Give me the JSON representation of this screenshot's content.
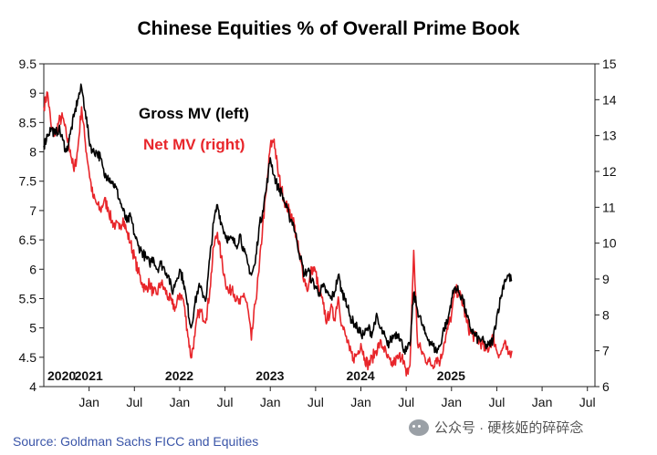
{
  "chart_data": {
    "type": "line",
    "title": "Chinese Equities % of Overall Prime Book",
    "legend": [
      {
        "name": "Gross MV (left)",
        "color": "#000000"
      },
      {
        "name": "Net MV (right)",
        "color": "#e8262b"
      }
    ],
    "left_axis": {
      "min": 4,
      "max": 9.5,
      "ticks": [
        "9.5",
        "9",
        "8.5",
        "8",
        "7.5",
        "7",
        "6.5",
        "6",
        "5.5",
        "5",
        "4.5",
        "4"
      ]
    },
    "right_axis": {
      "min": 6,
      "max": 15,
      "ticks": [
        "15",
        "14",
        "13",
        "12",
        "11",
        "10",
        "9",
        "8",
        "7",
        "6"
      ]
    },
    "x_ticks": [
      "Jan",
      "Jul",
      "Jan",
      "Jul",
      "Jan",
      "Jul",
      "Jan",
      "Jul",
      "Jan",
      "Jul",
      "Jan",
      "Jul"
    ],
    "x_tick_months": [
      6,
      12,
      18,
      24,
      30,
      36,
      42,
      48,
      54,
      60,
      66,
      72
    ],
    "years": [
      {
        "label": "2020",
        "month": 0
      },
      {
        "label": "2021",
        "month": 6
      },
      {
        "label": "2022",
        "month": 18
      },
      {
        "label": "2023",
        "month": 30
      },
      {
        "label": "2024",
        "month": 42
      },
      {
        "label": "2025",
        "month": 54
      }
    ],
    "x_range_months": [
      0,
      73
    ],
    "series": [
      {
        "name": "Gross MV (left)",
        "axis": "left",
        "color": "#000000",
        "points": [
          [
            0,
            8.1
          ],
          [
            0.5,
            8.3
          ],
          [
            1,
            8.4
          ],
          [
            1.5,
            8.3
          ],
          [
            2,
            8.4
          ],
          [
            2.5,
            8.2
          ],
          [
            3,
            8.0
          ],
          [
            3.5,
            8.3
          ],
          [
            4,
            8.6
          ],
          [
            4.5,
            8.9
          ],
          [
            5,
            9.1
          ],
          [
            5.5,
            8.7
          ],
          [
            6,
            8.2
          ],
          [
            6.5,
            8.0
          ],
          [
            7,
            8.0
          ],
          [
            7.5,
            7.9
          ],
          [
            8,
            7.6
          ],
          [
            8.5,
            7.6
          ],
          [
            9,
            7.5
          ],
          [
            9.5,
            7.4
          ],
          [
            10,
            7.2
          ],
          [
            10.5,
            7.0
          ],
          [
            11,
            6.8
          ],
          [
            11.5,
            6.9
          ],
          [
            12,
            6.6
          ],
          [
            12.5,
            6.4
          ],
          [
            13,
            6.3
          ],
          [
            13.5,
            6.2
          ],
          [
            14,
            6.1
          ],
          [
            14.5,
            6.2
          ],
          [
            15,
            6.0
          ],
          [
            15.5,
            6.1
          ],
          [
            16,
            6.0
          ],
          [
            16.5,
            5.9
          ],
          [
            17,
            5.6
          ],
          [
            17.5,
            5.8
          ],
          [
            18,
            6.0
          ],
          [
            18.5,
            5.8
          ],
          [
            19,
            5.4
          ],
          [
            19.5,
            5.0
          ],
          [
            20,
            5.4
          ],
          [
            20.5,
            5.7
          ],
          [
            21,
            5.6
          ],
          [
            21.5,
            5.5
          ],
          [
            22,
            6.2
          ],
          [
            22.5,
            6.8
          ],
          [
            23,
            7.1
          ],
          [
            23.5,
            6.8
          ],
          [
            24,
            6.6
          ],
          [
            24.5,
            6.5
          ],
          [
            25,
            6.5
          ],
          [
            25.5,
            6.4
          ],
          [
            26,
            6.6
          ],
          [
            26.5,
            6.3
          ],
          [
            27,
            6.1
          ],
          [
            27.5,
            5.9
          ],
          [
            28,
            6.1
          ],
          [
            28.5,
            6.7
          ],
          [
            29,
            7.0
          ],
          [
            29.5,
            7.4
          ],
          [
            30,
            7.9
          ],
          [
            30.5,
            7.6
          ],
          [
            31,
            7.4
          ],
          [
            31.5,
            7.3
          ],
          [
            32,
            7.1
          ],
          [
            32.5,
            6.9
          ],
          [
            33,
            6.8
          ],
          [
            33.5,
            6.5
          ],
          [
            34,
            6.2
          ],
          [
            34.5,
            5.9
          ],
          [
            35,
            6.0
          ],
          [
            35.5,
            5.8
          ],
          [
            36,
            5.7
          ],
          [
            36.5,
            5.6
          ],
          [
            37,
            5.7
          ],
          [
            37.5,
            5.6
          ],
          [
            38,
            5.5
          ],
          [
            38.5,
            5.6
          ],
          [
            39,
            5.9
          ],
          [
            39.5,
            5.6
          ],
          [
            40,
            5.5
          ],
          [
            40.5,
            5.2
          ],
          [
            41,
            5.1
          ],
          [
            41.5,
            5.0
          ],
          [
            42,
            4.9
          ],
          [
            42.5,
            4.9
          ],
          [
            43,
            5.0
          ],
          [
            43.5,
            4.9
          ],
          [
            44,
            5.2
          ],
          [
            44.5,
            5.0
          ],
          [
            45,
            4.9
          ],
          [
            45.5,
            4.7
          ],
          [
            46,
            4.8
          ],
          [
            46.5,
            4.9
          ],
          [
            47,
            4.9
          ],
          [
            47.5,
            4.7
          ],
          [
            48,
            4.6
          ],
          [
            48.5,
            4.7
          ],
          [
            49,
            5.6
          ],
          [
            49.5,
            5.3
          ],
          [
            50,
            5.1
          ],
          [
            50.5,
            4.9
          ],
          [
            51,
            4.8
          ],
          [
            51.5,
            4.7
          ],
          [
            52,
            4.6
          ],
          [
            52.5,
            4.7
          ],
          [
            53,
            5.0
          ],
          [
            53.5,
            5.1
          ],
          [
            54,
            5.5
          ],
          [
            54.5,
            5.7
          ],
          [
            55,
            5.6
          ],
          [
            55.5,
            5.5
          ],
          [
            56,
            5.2
          ],
          [
            56.5,
            5.0
          ],
          [
            57,
            4.9
          ],
          [
            57.5,
            4.8
          ],
          [
            58,
            4.8
          ],
          [
            58.5,
            4.7
          ],
          [
            59,
            4.7
          ],
          [
            59.5,
            4.8
          ],
          [
            60,
            5.2
          ],
          [
            60.5,
            5.5
          ],
          [
            61,
            5.8
          ],
          [
            61.5,
            5.9
          ],
          [
            62,
            5.8
          ]
        ]
      },
      {
        "name": "Net MV (right)",
        "axis": "right",
        "color": "#e8262b",
        "points": [
          [
            0,
            13.8
          ],
          [
            0.5,
            14.2
          ],
          [
            1,
            13.2
          ],
          [
            1.5,
            13.0
          ],
          [
            2,
            13.4
          ],
          [
            2.5,
            13.5
          ],
          [
            3,
            13.0
          ],
          [
            3.5,
            12.6
          ],
          [
            4,
            12.0
          ],
          [
            4.5,
            12.6
          ],
          [
            5,
            13.8
          ],
          [
            5.5,
            12.8
          ],
          [
            6,
            12.0
          ],
          [
            6.5,
            11.3
          ],
          [
            7,
            11.1
          ],
          [
            7.5,
            10.9
          ],
          [
            8,
            11.2
          ],
          [
            8.5,
            11.0
          ],
          [
            9,
            10.6
          ],
          [
            9.5,
            10.5
          ],
          [
            10,
            10.4
          ],
          [
            10.5,
            10.7
          ],
          [
            11,
            10.3
          ],
          [
            11.5,
            10.0
          ],
          [
            12,
            9.6
          ],
          [
            12.5,
            9.2
          ],
          [
            13,
            8.9
          ],
          [
            13.5,
            8.7
          ],
          [
            14,
            8.9
          ],
          [
            14.5,
            8.6
          ],
          [
            15,
            8.6
          ],
          [
            15.5,
            8.9
          ],
          [
            16,
            8.7
          ],
          [
            16.5,
            8.5
          ],
          [
            17,
            8.3
          ],
          [
            17.5,
            8.2
          ],
          [
            18,
            8.6
          ],
          [
            18.5,
            8.4
          ],
          [
            19,
            7.6
          ],
          [
            19.5,
            6.8
          ],
          [
            20,
            7.4
          ],
          [
            20.5,
            8.1
          ],
          [
            21,
            8.0
          ],
          [
            21.5,
            7.9
          ],
          [
            22,
            8.7
          ],
          [
            22.5,
            9.9
          ],
          [
            23,
            10.3
          ],
          [
            23.5,
            9.6
          ],
          [
            24,
            9.0
          ],
          [
            24.5,
            8.6
          ],
          [
            25,
            8.8
          ],
          [
            25.5,
            8.4
          ],
          [
            26,
            8.3
          ],
          [
            26.5,
            8.6
          ],
          [
            27,
            8.2
          ],
          [
            27.5,
            7.3
          ],
          [
            28,
            8.3
          ],
          [
            28.5,
            9.2
          ],
          [
            29,
            10.5
          ],
          [
            29.5,
            11.5
          ],
          [
            30,
            12.7
          ],
          [
            30.5,
            12.9
          ],
          [
            31,
            12.0
          ],
          [
            31.5,
            11.5
          ],
          [
            32,
            11.1
          ],
          [
            32.5,
            10.9
          ],
          [
            33,
            10.7
          ],
          [
            33.5,
            10.1
          ],
          [
            34,
            9.5
          ],
          [
            34.5,
            9.0
          ],
          [
            35,
            8.7
          ],
          [
            35.5,
            9.3
          ],
          [
            36,
            9.2
          ],
          [
            36.5,
            8.6
          ],
          [
            37,
            8.3
          ],
          [
            37.5,
            7.8
          ],
          [
            38,
            8.2
          ],
          [
            38.5,
            7.9
          ],
          [
            39,
            8.5
          ],
          [
            39.5,
            7.7
          ],
          [
            40,
            7.4
          ],
          [
            40.5,
            7.0
          ],
          [
            41,
            6.8
          ],
          [
            41.5,
            6.9
          ],
          [
            42,
            7.2
          ],
          [
            42.5,
            6.8
          ],
          [
            43,
            6.6
          ],
          [
            43.5,
            6.8
          ],
          [
            44,
            7.0
          ],
          [
            44.5,
            7.2
          ],
          [
            45,
            7.1
          ],
          [
            45.5,
            6.8
          ],
          [
            46,
            6.6
          ],
          [
            46.5,
            6.7
          ],
          [
            47,
            6.8
          ],
          [
            47.5,
            6.9
          ],
          [
            48,
            6.3
          ],
          [
            48.5,
            6.6
          ],
          [
            49,
            9.8
          ],
          [
            49.5,
            7.2
          ],
          [
            50,
            7.0
          ],
          [
            50.5,
            6.8
          ],
          [
            51,
            6.7
          ],
          [
            51.5,
            6.6
          ],
          [
            52,
            6.8
          ],
          [
            52.5,
            6.7
          ],
          [
            53,
            7.2
          ],
          [
            53.5,
            7.6
          ],
          [
            54,
            8.0
          ],
          [
            54.5,
            8.7
          ],
          [
            55,
            8.6
          ],
          [
            55.5,
            8.3
          ],
          [
            56,
            7.8
          ],
          [
            56.5,
            7.5
          ],
          [
            57,
            7.4
          ],
          [
            57.5,
            7.3
          ],
          [
            58,
            7.2
          ],
          [
            58.5,
            7.0
          ],
          [
            59,
            7.1
          ],
          [
            59.5,
            7.4
          ],
          [
            60,
            7.0
          ],
          [
            60.5,
            6.9
          ],
          [
            61,
            7.2
          ],
          [
            61.5,
            6.9
          ],
          [
            62,
            7.0
          ]
        ]
      }
    ]
  },
  "footer": {
    "source": "Source: Goldman Sachs FICC and Equities",
    "watermark": "公众号 · 硬核姬的碎碎念"
  }
}
